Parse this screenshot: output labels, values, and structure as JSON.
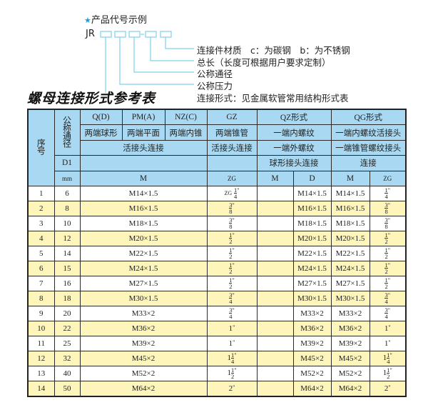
{
  "code_example": {
    "title": "产品代号示例",
    "prefix": "JR",
    "labels": [
      "连接件材质　c：为碳钢　b：为不锈钢",
      "总长（长度可根据用户要求定制）",
      "公称通径",
      "公称压力",
      "连接形式：见金属软管常用结构形式表"
    ],
    "accent": "#1a9fd8"
  },
  "table_title": "螺母连接形式参考表",
  "header": {
    "seq": "序号",
    "dn": "公称通径",
    "d1": "D1",
    "mm": "mm",
    "qd": "Q(D)",
    "pm": "PM(A)",
    "nz": "NZ(C)",
    "gz": "GZ",
    "qz": "QZ形式",
    "qg": "QG形式",
    "qd2": "两端球形",
    "pm2": "两端平面",
    "nz2": "两端内锥",
    "gz2": "两端锥管",
    "qz2": "一端内螺纹",
    "qg2": "一端内螺纹活接头",
    "huo": "活接头连接",
    "gz3": "活接头连接",
    "qz3": "一端外螺纹",
    "qg3": "一端锥管螺纹接头",
    "qz4": "球形接头连接",
    "qg4": "连接",
    "m": "M",
    "zg": "ZG",
    "qzm": "M",
    "qzd": "D",
    "qgm": "M",
    "qgzg": "ZG"
  },
  "colors": {
    "header_bg": "#a9d9f2",
    "row_alt_bg": "#fdf5b9"
  },
  "rows": [
    {
      "no": "1",
      "dn": "6",
      "m": "M14×1.5",
      "zg": {
        "pre": "ZG",
        "w": "",
        "n": "1",
        "d": "4"
      },
      "qzm": "",
      "qzd": "M14×1.5",
      "qgm": "M14×1.5",
      "qgzg": {
        "pre": "",
        "w": "",
        "n": "1",
        "d": "4"
      }
    },
    {
      "no": "2",
      "dn": "8",
      "m": "M16×1.5",
      "zg": {
        "pre": "",
        "w": "",
        "n": "3",
        "d": "8"
      },
      "qzm": "",
      "qzd": "M16×1.5",
      "qgm": "M16×1.5",
      "qgzg": {
        "pre": "",
        "w": "",
        "n": "3",
        "d": "8"
      }
    },
    {
      "no": "3",
      "dn": "10",
      "m": "M18×1.5",
      "zg": {
        "pre": "",
        "w": "",
        "n": "3",
        "d": "8"
      },
      "qzm": "",
      "qzd": "M18×1.5",
      "qgm": "M18×1.5",
      "qgzg": {
        "pre": "",
        "w": "",
        "n": "3",
        "d": "8"
      }
    },
    {
      "no": "4",
      "dn": "12",
      "m": "M20×1.5",
      "zg": {
        "pre": "",
        "w": "",
        "n": "1",
        "d": "2"
      },
      "qzm": "",
      "qzd": "M20×1.5",
      "qgm": "M20×1.5",
      "qgzg": {
        "pre": "",
        "w": "",
        "n": "1",
        "d": "2"
      }
    },
    {
      "no": "5",
      "dn": "14",
      "m": "M22×1.5",
      "zg": {
        "pre": "",
        "w": "",
        "n": "1",
        "d": "2"
      },
      "qzm": "",
      "qzd": "M22×1.5",
      "qgm": "M22×1.5",
      "qgzg": {
        "pre": "",
        "w": "",
        "n": "1",
        "d": "2"
      }
    },
    {
      "no": "6",
      "dn": "15",
      "m": "M24×1.5",
      "zg": {
        "pre": "",
        "w": "",
        "n": "1",
        "d": "2"
      },
      "qzm": "",
      "qzd": "M24×1.5",
      "qgm": "M24×1.5",
      "qgzg": {
        "pre": "",
        "w": "",
        "n": "1",
        "d": "2"
      }
    },
    {
      "no": "7",
      "dn": "16",
      "m": "M27×1.5",
      "zg": {
        "pre": "",
        "w": "",
        "n": "1",
        "d": "2"
      },
      "qzm": "",
      "qzd": "M27×1.5",
      "qgm": "M27×1.5",
      "qgzg": {
        "pre": "",
        "w": "",
        "n": "1",
        "d": "2"
      }
    },
    {
      "no": "8",
      "dn": "18",
      "m": "M30×1.5",
      "zg": {
        "pre": "",
        "w": "",
        "n": "3",
        "d": "4"
      },
      "qzm": "",
      "qzd": "M30×1.5",
      "qgm": "M30×1.5",
      "qgzg": {
        "pre": "",
        "w": "",
        "n": "3",
        "d": "4"
      }
    },
    {
      "no": "9",
      "dn": "20",
      "m": "M33×2",
      "zg": {
        "pre": "",
        "w": "",
        "n": "3",
        "d": "4"
      },
      "qzm": "",
      "qzd": "M33×2",
      "qgm": "M33×2",
      "qgzg": {
        "pre": "",
        "w": "",
        "n": "3",
        "d": "4"
      }
    },
    {
      "no": "10",
      "dn": "22",
      "m": "M36×2",
      "zg": {
        "pre": "",
        "w": "1",
        "n": "",
        "d": ""
      },
      "qzm": "",
      "qzd": "M36×2",
      "qgm": "M36×2",
      "qgzg": {
        "pre": "",
        "w": "1",
        "n": "",
        "d": ""
      }
    },
    {
      "no": "11",
      "dn": "25",
      "m": "M39×2",
      "zg": {
        "pre": "",
        "w": "1",
        "n": "",
        "d": ""
      },
      "qzm": "",
      "qzd": "M39×2",
      "qgm": "M39×2",
      "qgzg": {
        "pre": "",
        "w": "1",
        "n": "",
        "d": ""
      }
    },
    {
      "no": "12",
      "dn": "32",
      "m": "M45×2",
      "zg": {
        "pre": "",
        "w": "1",
        "n": "1",
        "d": "4"
      },
      "qzm": "",
      "qzd": "M45×2",
      "qgm": "M45×2",
      "qgzg": {
        "pre": "",
        "w": "1",
        "n": "1",
        "d": "4"
      }
    },
    {
      "no": "13",
      "dn": "40",
      "m": "M52×2",
      "zg": {
        "pre": "",
        "w": "1",
        "n": "1",
        "d": "2"
      },
      "qzm": "",
      "qzd": "M52×2",
      "qgm": "M52×2",
      "qgzg": {
        "pre": "",
        "w": "1",
        "n": "1",
        "d": "2"
      }
    },
    {
      "no": "14",
      "dn": "50",
      "m": "M64×2",
      "zg": {
        "pre": "",
        "w": "2",
        "n": "",
        "d": ""
      },
      "qzm": "",
      "qzd": "M64×2",
      "qgm": "M64×2",
      "qgzg": {
        "pre": "",
        "w": "2",
        "n": "",
        "d": ""
      }
    }
  ]
}
